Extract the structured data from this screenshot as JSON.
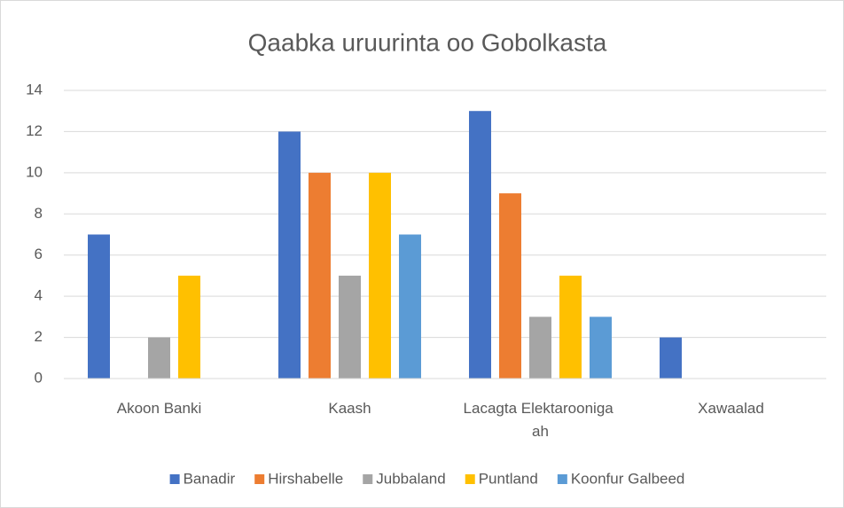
{
  "chart_data": {
    "type": "bar",
    "title": "Qaabka uruurinta oo Gobolkasta",
    "categories": [
      "Akoon Banki",
      "Kaash",
      "Lacagta Elektarooniga ah",
      "Xawaalad"
    ],
    "series": [
      {
        "name": "Banadir",
        "color": "#4472c4",
        "values": [
          7,
          12,
          13,
          2
        ]
      },
      {
        "name": "Hirshabelle",
        "color": "#ed7d31",
        "values": [
          0,
          10,
          9,
          0
        ]
      },
      {
        "name": "Jubbaland",
        "color": "#a5a5a5",
        "values": [
          2,
          5,
          3,
          0
        ]
      },
      {
        "name": "Puntland",
        "color": "#ffc000",
        "values": [
          5,
          10,
          5,
          0
        ]
      },
      {
        "name": "Koonfur Galbeed",
        "color": "#5b9bd5",
        "values": [
          0,
          7,
          3,
          0
        ]
      }
    ],
    "ylim": [
      0,
      14
    ],
    "yticks": [
      0,
      2,
      4,
      6,
      8,
      10,
      12,
      14
    ],
    "grid": true,
    "legend": "bottom"
  }
}
